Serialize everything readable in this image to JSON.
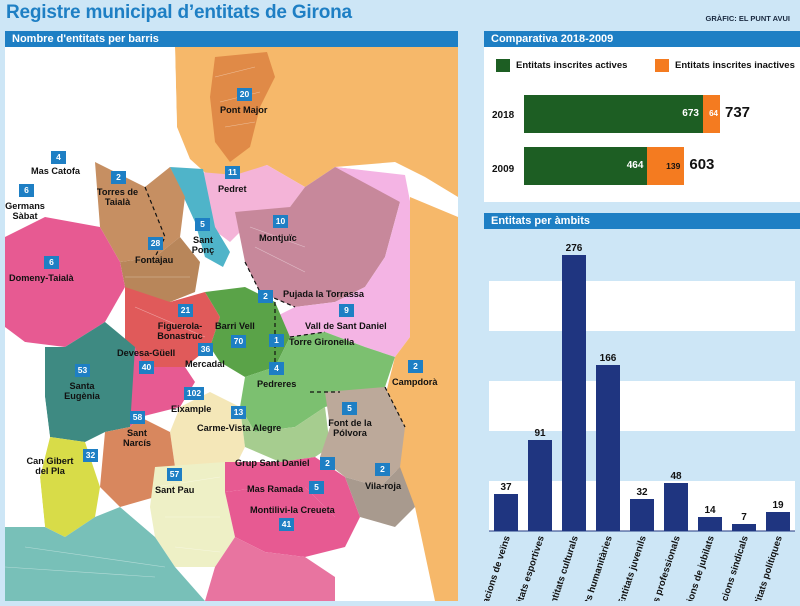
{
  "page": {
    "title": "Registre municipal d’entitats de Girona",
    "credit": "GRÀFIC: EL PUNT AVUI"
  },
  "map": {
    "header": "Nombre d'entitats per barris",
    "districts": [
      {
        "name": "Pont Major",
        "count": "20"
      },
      {
        "name": "Mas Catofa",
        "count": "4"
      },
      {
        "name": "Germans Sàbat",
        "count": "6"
      },
      {
        "name": "Torres de Taialà",
        "count": "2"
      },
      {
        "name": "Pedret",
        "count": "11"
      },
      {
        "name": "Sant Ponç",
        "count": "5"
      },
      {
        "name": "Montjuïc",
        "count": "10"
      },
      {
        "name": "Fontajau",
        "count": "28"
      },
      {
        "name": "Domeny-Taialà",
        "count": "6"
      },
      {
        "name": "Pujada la Torrassa",
        "count": "2"
      },
      {
        "name": "Vall de Sant Daniel",
        "count": "9"
      },
      {
        "name": "Figuerola-Bonastruc",
        "count": "21"
      },
      {
        "name": "Barri Vell",
        "count": "70"
      },
      {
        "name": "Torre Gironella",
        "count": "1"
      },
      {
        "name": "Devesa-Güell",
        "count": "40"
      },
      {
        "name": "Mercadal",
        "count": "36"
      },
      {
        "name": "Santa Eugènia",
        "count": "53"
      },
      {
        "name": "Pedreres",
        "count": "4"
      },
      {
        "name": "Campdorà",
        "count": "2"
      },
      {
        "name": "Eixample",
        "count": "102"
      },
      {
        "name": "Sant Narcís",
        "count": "58"
      },
      {
        "name": "Carme-Vista Alegre",
        "count": "13"
      },
      {
        "name": "Font de la Pólvora",
        "count": "5"
      },
      {
        "name": "Can Gibert del Pla",
        "count": "32"
      },
      {
        "name": "Grup Sant Daniel",
        "count": "2"
      },
      {
        "name": "Vila-roja",
        "count": "2"
      },
      {
        "name": "Sant Pau",
        "count": "57"
      },
      {
        "name": "Mas Ramada",
        "count": "5"
      },
      {
        "name": "Montilivi-la Creueta",
        "count": "41"
      }
    ]
  },
  "comparison": {
    "header": "Comparativa 2018-2009",
    "legend_active": "Entitats inscrites actives",
    "legend_inactive": "Entitats inscrites inactives",
    "rows": [
      {
        "year": "2018",
        "active": "673",
        "inactive": "64",
        "total": "737"
      },
      {
        "year": "2009",
        "active": "464",
        "inactive": "139",
        "total": "603"
      }
    ]
  },
  "ambits": {
    "header": "Entitats per àmbits"
  },
  "colors": {
    "accent_blue": "#1e7fc4",
    "bg_light_blue": "#cde6f6",
    "active_green": "#1d5e23",
    "inactive_orange": "#f47b20",
    "bar_navy": "#1f3580"
  },
  "chart_data": [
    {
      "type": "bar",
      "orientation": "horizontal-stacked",
      "title": "Comparativa 2018-2009",
      "categories": [
        "2018",
        "2009"
      ],
      "series": [
        {
          "name": "Entitats inscrites actives",
          "values": [
            673,
            464
          ]
        },
        {
          "name": "Entitats inscrites inactives",
          "values": [
            64,
            139
          ]
        }
      ],
      "totals": [
        737,
        603
      ],
      "xlim": [
        0,
        737
      ]
    },
    {
      "type": "bar",
      "title": "Entitats per àmbits",
      "categories": [
        "Associacions de veïns",
        "Entitats esportives",
        "Entitats culturals",
        "Entitats humanitàries",
        "Entitats juvenils",
        "Associacions professionals",
        "Associacions de jubilats",
        "Organitzacions sindicals",
        "Entitats polítiques"
      ],
      "visible_labels": [
        "...iacions de veïns",
        "Entitats esportives",
        "Entitats culturals",
        "...tats humanitàries",
        "Entitats juvenils",
        "...ns professionals",
        "...cions de jubilats",
        "...zacions sindicals",
        "...titats polítiques"
      ],
      "values": [
        37,
        91,
        276,
        166,
        32,
        48,
        14,
        7,
        19
      ],
      "ylim": [
        0,
        290
      ],
      "grid": "horizontal bands"
    }
  ]
}
